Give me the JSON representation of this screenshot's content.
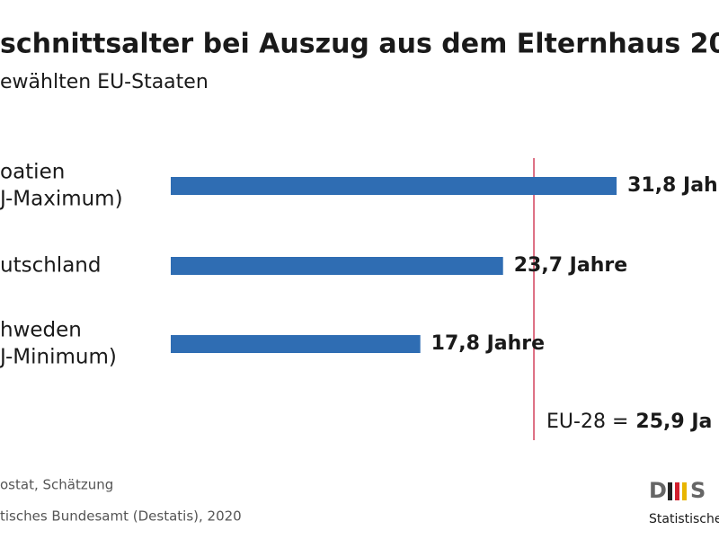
{
  "chart_data": {
    "type": "hbar",
    "title": "schnittsalter bei Auszug aus dem Elternhaus 20",
    "subtitle": "ewählten EU-Staaten",
    "categories": [
      [
        "oatien",
        "J-Maximum)"
      ],
      [
        "utschland"
      ],
      [
        "hweden",
        "J-Minimum)"
      ]
    ],
    "values": [
      31.8,
      23.7,
      17.8
    ],
    "value_labels": [
      "31,8 Jah",
      "23,7 Jahre",
      "17,8 Jahre"
    ],
    "color": "#2f6db3",
    "reference": {
      "value": 25.9,
      "label": "EU-28 =",
      "value_label": "25,9 Ja",
      "color": "#d2405a"
    },
    "source": [
      "ostat, Schätzung",
      "tisches Bundesamt (Destatis), 2020"
    ],
    "logo": {
      "letter": "D",
      "text": "Statistische"
    }
  }
}
